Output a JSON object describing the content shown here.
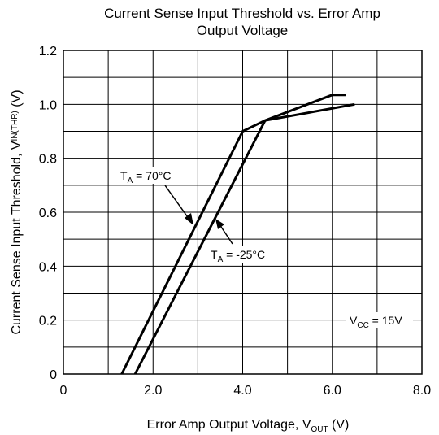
{
  "chart_data": {
    "type": "line",
    "title_line1": "Current Sense Input Threshold vs. Error Amp",
    "title_line2": "Output Voltage",
    "xlabel": {
      "main": "Error Amp Output Voltage, V",
      "sub": "OUT",
      "unit": " (V)"
    },
    "ylabel": {
      "main": "Current Sense Input Threshold, V",
      "sub": "IN(THR)",
      "unit": " (V)"
    },
    "xlim": [
      0,
      8.0
    ],
    "ylim": [
      0,
      1.2
    ],
    "x_ticks": [
      "0",
      "2.0",
      "4.0",
      "6.0",
      "8.0"
    ],
    "y_ticks": [
      "0",
      "0.2",
      "0.4",
      "0.6",
      "0.8",
      "1.0",
      "1.2"
    ],
    "grid": true,
    "series": [
      {
        "name": "T_A = 70°C",
        "points": [
          [
            1.3,
            0.0
          ],
          [
            4.0,
            0.9
          ],
          [
            4.5,
            0.94
          ],
          [
            6.0,
            1.035
          ],
          [
            6.3,
            1.035
          ]
        ]
      },
      {
        "name": "T_A = -25°C",
        "points": [
          [
            1.6,
            0.0
          ],
          [
            4.5,
            0.94
          ],
          [
            6.5,
            1.0
          ]
        ]
      }
    ],
    "annotations": [
      {
        "id": "ta70",
        "main": "T",
        "sub": "A",
        "rest": " = 70°C"
      },
      {
        "id": "ta25",
        "main": "T",
        "sub": "A",
        "rest": " = -25°C"
      },
      {
        "id": "vcc",
        "main": "V",
        "sub": "CC",
        "rest": " = 15V"
      }
    ]
  }
}
